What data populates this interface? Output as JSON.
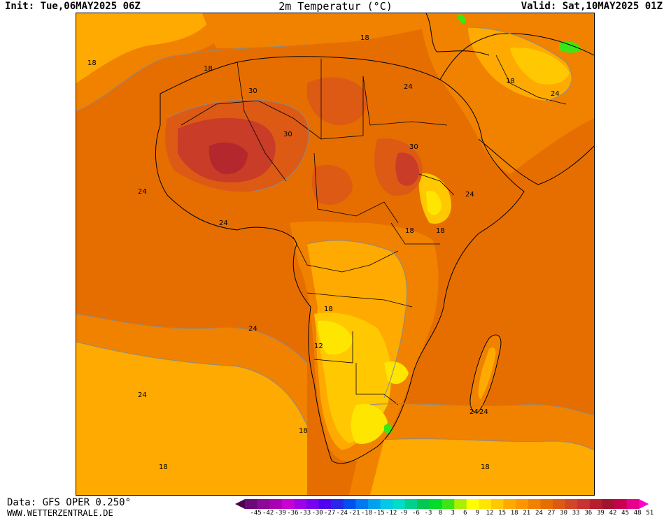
{
  "header": {
    "init": "Init: Tue,06MAY2025 06Z",
    "title": "2m Temperatur (°C)",
    "valid": "Valid: Sat,10MAY2025 01Z"
  },
  "footer": {
    "source": "Data: GFS OPER 0.250°",
    "site": "WWW.WETTERZENTRALE.DE"
  },
  "colorbar": {
    "ticks": [
      "-45",
      "-42",
      "-39",
      "-36",
      "-33",
      "-30",
      "-27",
      "-24",
      "-21",
      "-18",
      "-15",
      "-12",
      "-9",
      "-6",
      "-3",
      "0",
      "3",
      "6",
      "9",
      "12",
      "15",
      "18",
      "21",
      "24",
      "27",
      "30",
      "33",
      "36",
      "39",
      "42",
      "45",
      "48",
      "51"
    ],
    "colors": [
      "#4b0050",
      "#6a0a78",
      "#8c0a96",
      "#aa00b4",
      "#c800d2",
      "#a000e6",
      "#7800f0",
      "#5000f0",
      "#2828e6",
      "#0050f0",
      "#0078f0",
      "#00a0f0",
      "#00c8e6",
      "#00dcc8",
      "#00d28c",
      "#00c850",
      "#00dc28",
      "#3ce614",
      "#aaf000",
      "#ffff00",
      "#ffe600",
      "#ffc800",
      "#ffaa00",
      "#ff9600",
      "#f08200",
      "#e66e00",
      "#dc5a14",
      "#d24628",
      "#c83232",
      "#b41e2d",
      "#a0142d",
      "#c80050",
      "#e6008c",
      "#ff00c8"
    ]
  },
  "map": {
    "colors": {
      "ocean_24": "#e66e00",
      "ocean_21": "#f08200",
      "ocean_18": "#ffaa00",
      "land_15": "#ffc800",
      "land_12": "#ffe600",
      "land_9": "#ffff00",
      "hot_27": "#dc5a14",
      "hot_30": "#c83c28",
      "hot_33": "#b4282d",
      "cool_6": "#3ce614",
      "contour": "#8a8a8a",
      "border": "#000000"
    },
    "contour_labels": [
      "18",
      "18",
      "18",
      "30",
      "30",
      "24",
      "18",
      "24",
      "24",
      "30",
      "24",
      "18",
      "18",
      "18",
      "24",
      "12",
      "24",
      "24",
      "24",
      "18",
      "18",
      "18",
      "24"
    ]
  }
}
